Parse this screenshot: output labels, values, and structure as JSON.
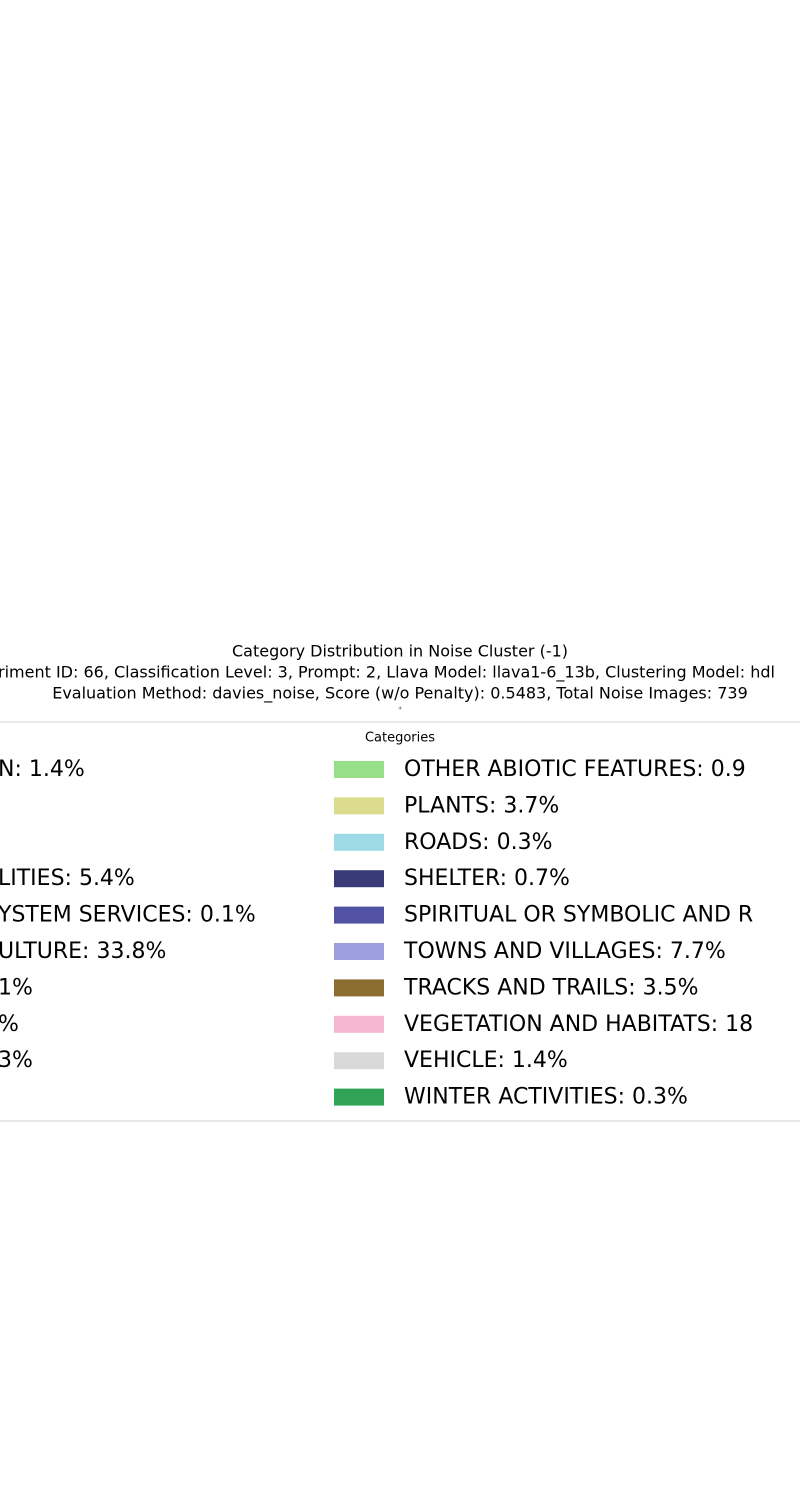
{
  "chart_data": {
    "type": "pie",
    "title": "Category Distribution in Noise Cluster (-1)",
    "subtitle": [
      "riment ID: 66, Classification Level: 3, Prompt: 2, Llava Model: llava1-6_13b, Clustering Model: hdl",
      "Evaluation Method: davies_noise, Score (w/o Penalty): 0.5483, Total Noise Images: 739"
    ],
    "legend_title": "Categories",
    "categories": [
      "N: 1.4%",
      null,
      null,
      "LITIES: 5.4%",
      "YSTEM SERVICES: 0.1%",
      "ULTURE: 33.8%",
      "1%",
      "%",
      "3%",
      null,
      "OTHER ABIOTIC FEATURES: 0.9",
      "PLANTS: 3.7%",
      "ROADS: 0.3%",
      "SHELTER: 0.7%",
      "SPIRITUAL OR SYMBOLIC AND R",
      "TOWNS AND VILLAGES: 7.7%",
      "TRACKS AND TRAILS: 3.5%",
      "VEGETATION AND HABITATS: 18",
      "VEHICLE: 1.4%",
      "WINTER ACTIVITIES: 0.3%"
    ],
    "values": [
      1.4,
      null,
      null,
      5.4,
      0.1,
      33.8,
      null,
      null,
      null,
      null,
      0.9,
      3.7,
      0.3,
      0.7,
      null,
      7.7,
      3.5,
      18,
      1.4,
      0.3
    ],
    "colors": [
      null,
      null,
      null,
      null,
      null,
      null,
      null,
      null,
      null,
      null,
      "#98df8a",
      "#dbdb8d",
      "#9edae5",
      "#393b79",
      "#5254a3",
      "#9c9ede",
      "#8c6d31",
      "#f7b6d2",
      "#d9d9d9",
      "#31a354"
    ]
  }
}
